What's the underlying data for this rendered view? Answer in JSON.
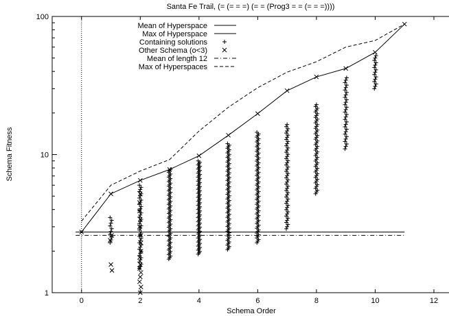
{
  "chart_data": {
    "type": "scatter",
    "title": "Santa Fe Trail, (= (= = =) (= = (Prog3 = = (= = =))))",
    "xlabel": "Schema Order",
    "ylabel": "Schema Fitness",
    "xlim": [
      -1,
      12
    ],
    "ylim": [
      1,
      100
    ],
    "yscale": "log",
    "x_ticks": [
      "0",
      "2",
      "4",
      "6",
      "8",
      "10",
      "12"
    ],
    "y_ticks": [
      "1",
      "10",
      "100"
    ],
    "grid": false,
    "legend_position": "top-left",
    "series": [
      {
        "name": "Mean of Hyperspace",
        "style": "solid-line",
        "x": [
          -0.2,
          11.0
        ],
        "y": [
          2.75,
          2.75
        ]
      },
      {
        "name": "Max of Hyperspace",
        "style": "solid-line",
        "x": [
          0,
          1,
          2,
          3,
          4,
          5,
          6,
          7,
          8,
          9,
          10,
          11
        ],
        "y": [
          2.75,
          5.2,
          6.5,
          7.8,
          9.8,
          13.8,
          19.8,
          29.0,
          36.5,
          42.0,
          55.0,
          88.0
        ]
      },
      {
        "name": "Containing solutions",
        "style": "plus-markers",
        "columns": [
          {
            "x": 1,
            "lo": 2.3,
            "hi": 3.5,
            "n": 10
          },
          {
            "x": 2,
            "lo": 1.5,
            "hi": 6.0,
            "n": 40
          },
          {
            "x": 3,
            "lo": 1.75,
            "hi": 7.8,
            "n": 60
          },
          {
            "x": 4,
            "lo": 1.9,
            "hi": 9.0,
            "n": 70
          },
          {
            "x": 5,
            "lo": 2.05,
            "hi": 12.0,
            "n": 70
          },
          {
            "x": 6,
            "lo": 2.3,
            "hi": 14.5,
            "n": 70
          },
          {
            "x": 7,
            "lo": 2.9,
            "hi": 16.5,
            "n": 50
          },
          {
            "x": 8,
            "lo": 5.2,
            "hi": 23.0,
            "n": 50
          },
          {
            "x": 9,
            "lo": 11.0,
            "hi": 36.0,
            "n": 30
          },
          {
            "x": 10,
            "lo": 30.0,
            "hi": 52.0,
            "n": 15
          }
        ]
      },
      {
        "name": "Other Schema (o<3)",
        "style": "x-markers",
        "points": [
          {
            "x": 1,
            "y": 1.6
          },
          {
            "x": 1,
            "y": 1.45
          },
          {
            "x": 1,
            "y": 2.4
          },
          {
            "x": 1,
            "y": 2.6
          },
          {
            "x": 2,
            "y": 1.0
          },
          {
            "x": 2,
            "y": 1.2
          },
          {
            "x": 2,
            "y": 1.4
          },
          {
            "x": 2,
            "y": 1.6
          },
          {
            "x": 2,
            "y": 1.8
          },
          {
            "x": 2,
            "y": 2.0
          },
          {
            "x": 2,
            "y": 2.3
          },
          {
            "x": 2,
            "y": 2.6
          },
          {
            "x": 2,
            "y": 3.0
          },
          {
            "x": 2,
            "y": 3.4
          },
          {
            "x": 2,
            "y": 3.9
          },
          {
            "x": 2,
            "y": 4.5
          },
          {
            "x": 2,
            "y": 5.2
          },
          {
            "x": 2,
            "y": 1.1
          },
          {
            "x": 2,
            "y": 1.3
          },
          {
            "x": 2,
            "y": 1.5
          }
        ]
      },
      {
        "name": "Mean of length 12",
        "style": "dash-dot-line",
        "x": [
          -0.2,
          11.0
        ],
        "y": [
          2.6,
          2.6
        ]
      },
      {
        "name": "Max of Hyperspaces",
        "style": "dashed-line",
        "x": [
          0,
          1,
          2,
          3,
          4,
          5,
          6,
          7,
          8,
          9,
          10,
          11
        ],
        "y": [
          3.3,
          6.0,
          7.6,
          9.2,
          14.8,
          22.0,
          30.5,
          39.5,
          47.0,
          60.0,
          67.0,
          88.0
        ]
      },
      {
        "name": "",
        "style": "vertical-dotted-line",
        "x": [
          0,
          0
        ],
        "y": [
          1,
          100
        ]
      }
    ]
  }
}
